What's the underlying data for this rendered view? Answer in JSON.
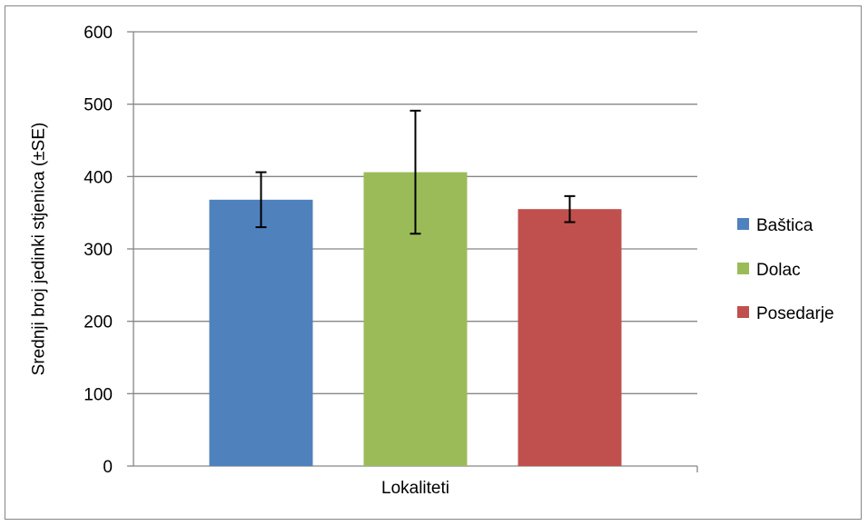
{
  "chart_data": {
    "type": "bar",
    "title": "",
    "xlabel": "Lokaliteti",
    "ylabel": "Srednji broj jedinki stjenica (±SE)",
    "ylim": [
      0,
      600
    ],
    "yticks": [
      0,
      100,
      200,
      300,
      400,
      500,
      600
    ],
    "categories": [
      "Lokaliteti"
    ],
    "grid": true,
    "legend_position": "right",
    "series": [
      {
        "name": "Baštica",
        "value": 368,
        "error": 38,
        "color": "#4f81bd"
      },
      {
        "name": "Dolac",
        "value": 406,
        "error": 85,
        "color": "#9bbb59"
      },
      {
        "name": "Posedarje",
        "value": 355,
        "error": 18,
        "color": "#c0504d"
      }
    ]
  }
}
